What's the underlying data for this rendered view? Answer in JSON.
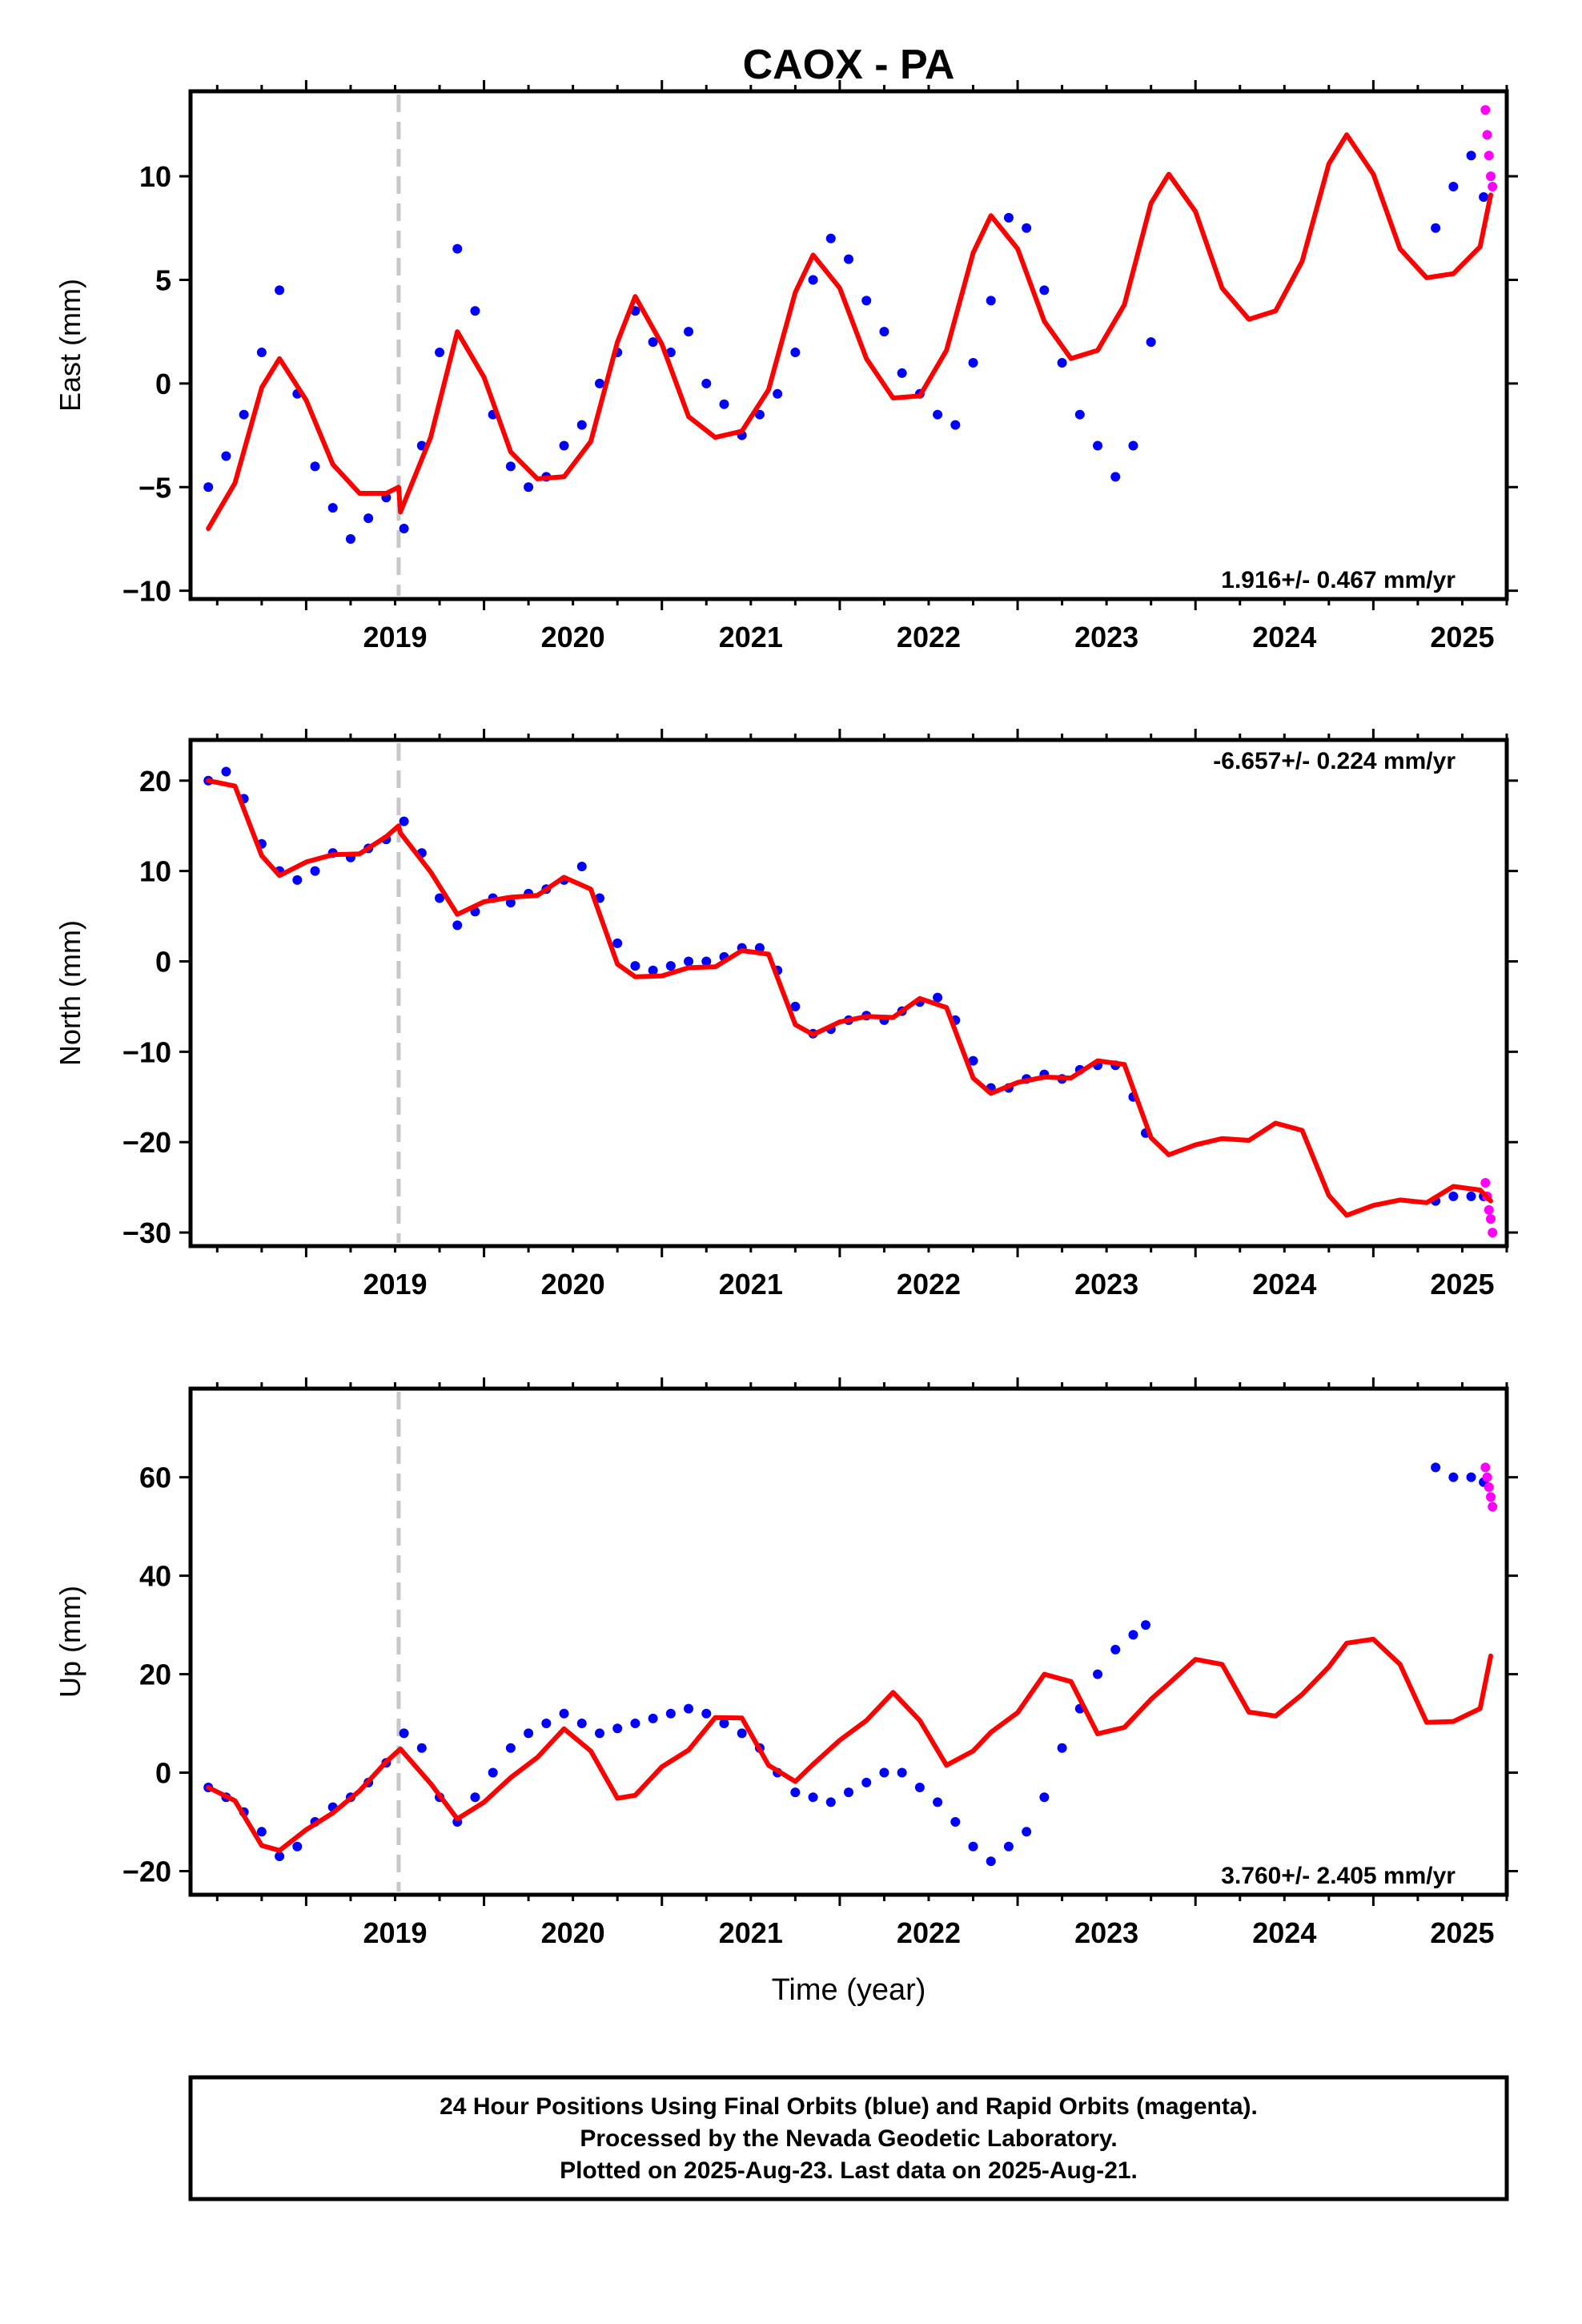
{
  "figure": {
    "title": "CAOX - PA",
    "xlabel": "Time (year)",
    "footer": [
      "24 Hour Positions Using Final Orbits (blue) and Rapid Orbits (magenta).",
      "Processed by the Nevada Geodetic Laboratory.",
      "Plotted on 2025-Aug-23. Last data on 2025-Aug-21."
    ],
    "colors": {
      "final": "#0000ff",
      "rapid": "#ff00ff",
      "model": "#ff0000",
      "break": "#c8c8c8"
    }
  },
  "chart_data": [
    {
      "type": "scatter",
      "ylabel": "East (mm)",
      "rate_label": "1.916+/- 0.467 mm/yr",
      "xlim": [
        2018.35,
        2025.75
      ],
      "ylim": [
        -10.4,
        14.1
      ],
      "x_ticks": [
        2019,
        2020,
        2021,
        2022,
        2023,
        2024,
        2025
      ],
      "y_ticks": [
        -10,
        -5,
        0,
        5,
        10
      ],
      "break_epoch": 2019.52,
      "series": [
        {
          "name": "Final Orbits",
          "color": "#0000ff",
          "x": [
            2018.45,
            2018.55,
            2018.65,
            2018.75,
            2018.85,
            2018.95,
            2019.05,
            2019.15,
            2019.25,
            2019.35,
            2019.45,
            2019.55,
            2019.65,
            2019.75,
            2019.85,
            2019.95,
            2020.05,
            2020.15,
            2020.25,
            2020.35,
            2020.45,
            2020.55,
            2020.65,
            2020.75,
            2020.85,
            2020.95,
            2021.05,
            2021.15,
            2021.25,
            2021.35,
            2021.45,
            2021.55,
            2021.65,
            2021.75,
            2021.85,
            2021.95,
            2022.05,
            2022.15,
            2022.25,
            2022.35,
            2022.45,
            2022.55,
            2022.65,
            2022.75,
            2022.85,
            2022.95,
            2023.05,
            2023.15,
            2023.25,
            2023.35,
            2023.45,
            2023.55,
            2023.65,
            2023.75,
            2025.35,
            2025.45,
            2025.55,
            2025.62
          ],
          "y": [
            -5,
            -3.5,
            -1.5,
            1.5,
            4.5,
            -0.5,
            -4,
            -6,
            -7.5,
            -6.5,
            -5.5,
            -7,
            -3,
            1.5,
            6.5,
            3.5,
            -1.5,
            -4,
            -5,
            -4.5,
            -3,
            -2,
            0,
            1.5,
            3.5,
            2,
            1.5,
            2.5,
            0,
            -1,
            -2.5,
            -1.5,
            -0.5,
            1.5,
            5,
            7,
            6,
            4,
            2.5,
            0.5,
            -0.5,
            -1.5,
            -2,
            1,
            4,
            8,
            7.5,
            4.5,
            1,
            -1.5,
            -3,
            -4.5,
            -3,
            2,
            7.5,
            9.5,
            11,
            9
          ]
        },
        {
          "name": "Rapid Orbits",
          "color": "#ff00ff",
          "x": [
            2025.63,
            2025.64,
            2025.65,
            2025.66,
            2025.67
          ],
          "y": [
            13.2,
            12,
            11,
            10,
            9.5
          ]
        },
        {
          "name": "Model",
          "color": "#ff0000",
          "x": [
            2018.45,
            2018.6,
            2018.75,
            2018.85,
            2019.0,
            2019.15,
            2019.3,
            2019.45,
            2019.52,
            2019.53,
            2019.7,
            2019.85,
            2020.0,
            2020.15,
            2020.3,
            2020.45,
            2020.6,
            2020.75,
            2020.85,
            2021.0,
            2021.15,
            2021.3,
            2021.45,
            2021.6,
            2021.75,
            2021.85,
            2022.0,
            2022.15,
            2022.3,
            2022.45,
            2022.6,
            2022.75,
            2022.85,
            2023.0,
            2023.15,
            2023.3,
            2023.45,
            2023.6,
            2023.75,
            2023.85,
            2024.0,
            2024.15,
            2024.3,
            2024.45,
            2024.6,
            2024.75,
            2024.85,
            2025.0,
            2025.15,
            2025.3,
            2025.45,
            2025.6,
            2025.66
          ],
          "y": [
            -7,
            -4.8,
            -0.2,
            1.2,
            -0.8,
            -3.9,
            -5.3,
            -5.3,
            -5.0,
            -6.2,
            -2.6,
            2.5,
            0.3,
            -3.3,
            -4.6,
            -4.5,
            -2.8,
            2.0,
            4.2,
            1.9,
            -1.6,
            -2.6,
            -2.3,
            -0.3,
            4.4,
            6.2,
            4.6,
            1.2,
            -0.7,
            -0.6,
            1.6,
            6.3,
            8.1,
            6.5,
            3.0,
            1.2,
            1.6,
            3.8,
            8.7,
            10.1,
            8.3,
            4.6,
            3.1,
            3.5,
            5.9,
            10.6,
            12.0,
            10.1,
            6.5,
            5.1,
            5.3,
            6.6,
            9.1
          ]
        }
      ]
    },
    {
      "type": "scatter",
      "ylabel": "North (mm)",
      "rate_label": "-6.657+/- 0.224 mm/yr",
      "xlim": [
        2018.35,
        2025.75
      ],
      "ylim": [
        -31.5,
        24.5
      ],
      "x_ticks": [
        2019,
        2020,
        2021,
        2022,
        2023,
        2024,
        2025
      ],
      "y_ticks": [
        -30,
        -20,
        -10,
        0,
        10,
        20
      ],
      "break_epoch": 2019.52,
      "series": [
        {
          "name": "Final Orbits",
          "color": "#0000ff",
          "x": [
            2018.45,
            2018.55,
            2018.65,
            2018.75,
            2018.85,
            2018.95,
            2019.05,
            2019.15,
            2019.25,
            2019.35,
            2019.45,
            2019.55,
            2019.65,
            2019.75,
            2019.85,
            2019.95,
            2020.05,
            2020.15,
            2020.25,
            2020.35,
            2020.45,
            2020.55,
            2020.65,
            2020.75,
            2020.85,
            2020.95,
            2021.05,
            2021.15,
            2021.25,
            2021.35,
            2021.45,
            2021.55,
            2021.65,
            2021.75,
            2021.85,
            2021.95,
            2022.05,
            2022.15,
            2022.25,
            2022.35,
            2022.45,
            2022.55,
            2022.65,
            2022.75,
            2022.85,
            2022.95,
            2023.05,
            2023.15,
            2023.25,
            2023.35,
            2023.45,
            2023.55,
            2023.65,
            2023.72,
            2025.35,
            2025.45,
            2025.55,
            2025.62
          ],
          "y": [
            20,
            21,
            18,
            13,
            10,
            9,
            10,
            12,
            11.5,
            12.5,
            13.5,
            15.5,
            12,
            7,
            4,
            5.5,
            7,
            6.5,
            7.5,
            8,
            9,
            10.5,
            7,
            2,
            -0.5,
            -1,
            -0.5,
            0,
            0,
            0.5,
            1.5,
            1.5,
            -1,
            -5,
            -8,
            -7.5,
            -6.5,
            -6,
            -6.5,
            -5.5,
            -4.5,
            -4,
            -6.5,
            -11,
            -14,
            -14,
            -13,
            -12.5,
            -13,
            -12,
            -11.5,
            -11.5,
            -15,
            -19,
            -26.5,
            -26,
            -26,
            -26
          ]
        },
        {
          "name": "Rapid Orbits",
          "color": "#ff00ff",
          "x": [
            2025.63,
            2025.64,
            2025.65,
            2025.66,
            2025.67
          ],
          "y": [
            -24.5,
            -26,
            -27.5,
            -28.5,
            -30
          ]
        },
        {
          "name": "Model",
          "color": "#ff0000",
          "x": [
            2018.45,
            2018.6,
            2018.75,
            2018.85,
            2019.0,
            2019.15,
            2019.3,
            2019.45,
            2019.52,
            2019.53,
            2019.7,
            2019.85,
            2020.0,
            2020.15,
            2020.3,
            2020.45,
            2020.6,
            2020.75,
            2020.85,
            2021.0,
            2021.15,
            2021.3,
            2021.45,
            2021.6,
            2021.75,
            2021.85,
            2022.0,
            2022.15,
            2022.3,
            2022.45,
            2022.6,
            2022.75,
            2022.85,
            2023.0,
            2023.15,
            2023.3,
            2023.45,
            2023.6,
            2023.75,
            2023.85,
            2024.0,
            2024.15,
            2024.3,
            2024.45,
            2024.6,
            2024.75,
            2024.85,
            2025.0,
            2025.15,
            2025.3,
            2025.45,
            2025.6,
            2025.66
          ],
          "y": [
            20,
            19.4,
            11.7,
            9.5,
            11.0,
            11.8,
            11.9,
            13.8,
            15.0,
            14.2,
            9.9,
            5.2,
            6.6,
            7.1,
            7.3,
            9.3,
            8.0,
            -0.3,
            -1.7,
            -1.6,
            -0.7,
            -0.6,
            1.2,
            0.8,
            -7.0,
            -8.1,
            -6.7,
            -6.1,
            -6.2,
            -4.1,
            -5.1,
            -12.9,
            -14.6,
            -13.4,
            -12.8,
            -12.9,
            -11.0,
            -11.4,
            -19.5,
            -21.4,
            -20.3,
            -19.6,
            -19.8,
            -17.9,
            -18.7,
            -25.9,
            -28.1,
            -27.0,
            -26.4,
            -26.7,
            -24.9,
            -25.3,
            -26.5
          ]
        }
      ]
    },
    {
      "type": "scatter",
      "ylabel": "Up (mm)",
      "rate_label": "3.760+/- 2.405 mm/yr",
      "xlim": [
        2018.35,
        2025.75
      ],
      "ylim": [
        -24.8,
        78
      ],
      "x_ticks": [
        2019,
        2020,
        2021,
        2022,
        2023,
        2024,
        2025
      ],
      "y_ticks": [
        -20,
        0,
        20,
        40,
        60
      ],
      "break_epoch": 2019.52,
      "series": [
        {
          "name": "Final Orbits",
          "color": "#0000ff",
          "x": [
            2018.45,
            2018.55,
            2018.65,
            2018.75,
            2018.85,
            2018.95,
            2019.05,
            2019.15,
            2019.25,
            2019.35,
            2019.45,
            2019.55,
            2019.65,
            2019.75,
            2019.85,
            2019.95,
            2020.05,
            2020.15,
            2020.25,
            2020.35,
            2020.45,
            2020.55,
            2020.65,
            2020.75,
            2020.85,
            2020.95,
            2021.05,
            2021.15,
            2021.25,
            2021.35,
            2021.45,
            2021.55,
            2021.65,
            2021.75,
            2021.85,
            2021.95,
            2022.05,
            2022.15,
            2022.25,
            2022.35,
            2022.45,
            2022.55,
            2022.65,
            2022.75,
            2022.85,
            2022.95,
            2023.05,
            2023.15,
            2023.25,
            2023.35,
            2023.45,
            2023.55,
            2023.65,
            2023.72,
            2025.35,
            2025.45,
            2025.55,
            2025.62
          ],
          "y": [
            -3,
            -5,
            -8,
            -12,
            -17,
            -15,
            -10,
            -7,
            -5,
            -2,
            2,
            8,
            5,
            -5,
            -10,
            -5,
            0,
            5,
            8,
            10,
            12,
            10,
            8,
            9,
            10,
            11,
            12,
            13,
            12,
            10,
            8,
            5,
            0,
            -4,
            -5,
            -6,
            -4,
            -2,
            0,
            0,
            -3,
            -6,
            -10,
            -15,
            -18,
            -15,
            -12,
            -5,
            5,
            13,
            20,
            25,
            28,
            30,
            62,
            60,
            60,
            59
          ]
        },
        {
          "name": "Rapid Orbits",
          "color": "#ff00ff",
          "x": [
            2025.63,
            2025.64,
            2025.65,
            2025.66,
            2025.67
          ],
          "y": [
            62,
            60,
            58,
            56,
            54
          ]
        },
        {
          "name": "Model",
          "color": "#ff0000",
          "x": [
            2018.45,
            2018.6,
            2018.75,
            2018.85,
            2019.0,
            2019.15,
            2019.3,
            2019.45,
            2019.52,
            2019.53,
            2019.7,
            2019.85,
            2020.0,
            2020.15,
            2020.3,
            2020.45,
            2020.6,
            2020.75,
            2020.85,
            2021.0,
            2021.15,
            2021.3,
            2021.45,
            2021.6,
            2021.75,
            2021.85,
            2022.0,
            2022.15,
            2022.3,
            2022.45,
            2022.6,
            2022.75,
            2022.85,
            2023.0,
            2023.15,
            2023.3,
            2023.45,
            2023.6,
            2023.75,
            2023.85,
            2024.0,
            2024.15,
            2024.3,
            2024.45,
            2024.6,
            2024.75,
            2024.85,
            2025.0,
            2025.15,
            2025.3,
            2025.45,
            2025.6,
            2025.66
          ],
          "y": [
            -3.0,
            -5.7,
            -14.8,
            -15.8,
            -11.6,
            -8.2,
            -3.7,
            2.2,
            4.5,
            4.8,
            -2.2,
            -9.4,
            -6.0,
            -1.0,
            3.1,
            8.9,
            4.4,
            -5.2,
            -4.6,
            1.2,
            4.6,
            11.2,
            11.1,
            1.5,
            -1.8,
            1.7,
            6.6,
            10.6,
            16.3,
            10.6,
            1.5,
            4.4,
            8.2,
            12.2,
            20.0,
            18.5,
            7.9,
            9.2,
            14.9,
            18.1,
            23.0,
            22.0,
            12.3,
            11.5,
            15.9,
            21.5,
            26.3,
            27.1,
            22.0,
            10.2,
            10.4,
            13.0,
            23.7
          ]
        }
      ]
    }
  ]
}
